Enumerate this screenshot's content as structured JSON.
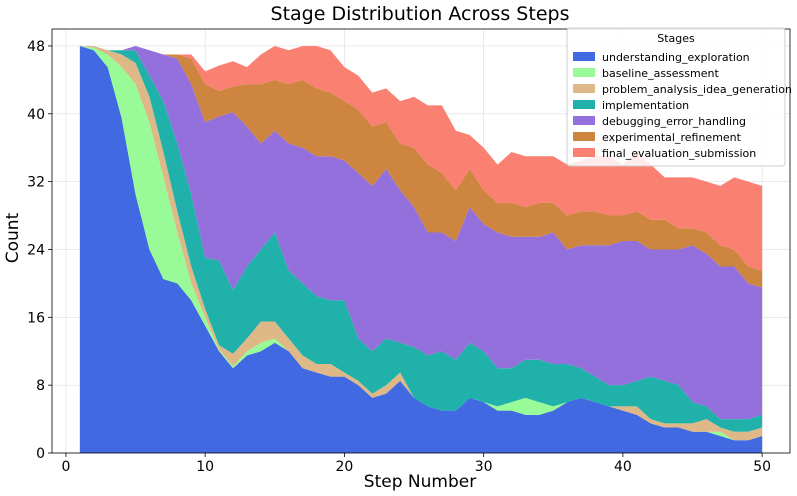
{
  "chart_data": {
    "type": "area",
    "stacked": true,
    "title": "Stage Distribution Across Steps",
    "xlabel": "Step Number",
    "ylabel": "Count",
    "xlim": [
      -1,
      52
    ],
    "ylim": [
      0,
      50
    ],
    "xticks": [
      0,
      10,
      20,
      30,
      40,
      50
    ],
    "yticks": [
      0,
      8,
      16,
      24,
      32,
      40,
      48
    ],
    "grid": true,
    "legend_title": "Stages",
    "legend_position": "top-right",
    "x": [
      1,
      2,
      3,
      4,
      5,
      6,
      7,
      8,
      9,
      10,
      11,
      12,
      13,
      14,
      15,
      16,
      17,
      18,
      19,
      20,
      21,
      22,
      23,
      24,
      25,
      26,
      27,
      28,
      29,
      30,
      31,
      32,
      33,
      34,
      35,
      36,
      37,
      38,
      39,
      40,
      41,
      42,
      43,
      44,
      45,
      46,
      47,
      48,
      49,
      50
    ],
    "series": [
      {
        "name": "understanding_exploration",
        "color": "#4169e1",
        "values": [
          48,
          47.5,
          45.5,
          39.5,
          30.5,
          24,
          20.5,
          20,
          18,
          15,
          12,
          10,
          11.5,
          12,
          13,
          12,
          10,
          9.5,
          9,
          9,
          8,
          6.5,
          7,
          8.5,
          6.5,
          5.5,
          5,
          5,
          6.5,
          6,
          5,
          5,
          4.5,
          4.5,
          5,
          6,
          6.5,
          6,
          5.5,
          5,
          4.5,
          3.5,
          3,
          3,
          2.5,
          2.5,
          2,
          1.5,
          1.5,
          2
        ]
      },
      {
        "name": "baseline_assessment",
        "color": "#98fb98",
        "values": [
          0,
          0.3,
          1.5,
          6,
          13,
          15,
          12,
          6,
          2,
          1,
          0.2,
          0.2,
          0.5,
          1,
          0.5,
          0,
          0,
          0,
          0,
          0,
          0,
          0,
          0,
          0,
          0,
          0,
          0,
          0,
          0,
          0,
          0.5,
          1,
          2,
          1.5,
          0.5,
          0,
          0,
          0,
          0,
          0,
          0,
          0,
          0,
          0,
          0,
          0,
          0.5,
          0,
          0,
          0
        ]
      },
      {
        "name": "problem_analysis_idea_generation",
        "color": "#deb887",
        "values": [
          0,
          0.2,
          0.5,
          1.5,
          2.5,
          3,
          3,
          2.5,
          2,
          1,
          0.5,
          1.5,
          1.5,
          2.5,
          2,
          1.5,
          1.5,
          1,
          1.5,
          0.5,
          0.5,
          0.5,
          1,
          1,
          0,
          0,
          0,
          0,
          0,
          0,
          0,
          0,
          0,
          0,
          0,
          0,
          0,
          0,
          0,
          0.5,
          1,
          0.5,
          0.5,
          0.5,
          1,
          1.5,
          0.5,
          1,
          1,
          1
        ]
      },
      {
        "name": "implementation",
        "color": "#20b2aa",
        "values": [
          0,
          0,
          0,
          0.5,
          1.5,
          2.5,
          6,
          8,
          8.5,
          6,
          10,
          7.5,
          8.5,
          8.5,
          10.5,
          8,
          8.5,
          8,
          7.5,
          8.5,
          5,
          5,
          5.5,
          3.5,
          6,
          6,
          7,
          6,
          6.5,
          6,
          4.5,
          4,
          4.5,
          5,
          5,
          4.5,
          3.5,
          3,
          2.5,
          2.5,
          3,
          5,
          5,
          4.5,
          2.5,
          1.5,
          1,
          1.5,
          1.5,
          1.5
        ]
      },
      {
        "name": "debugging_error_handling",
        "color": "#9370db",
        "values": [
          0,
          0,
          0,
          0,
          0.5,
          3,
          5.5,
          10,
          13,
          16,
          17,
          21,
          16.5,
          12.5,
          12,
          15,
          16,
          16.5,
          17,
          16.5,
          19.5,
          19.5,
          20,
          18,
          16.5,
          14.5,
          14,
          14,
          16,
          15,
          16,
          15.5,
          14.5,
          14.5,
          15.5,
          13.5,
          14.5,
          15.5,
          16.5,
          17,
          16.5,
          15,
          15.5,
          16,
          18.5,
          18,
          18,
          18,
          16,
          15
        ]
      },
      {
        "name": "experimental_refinement",
        "color": "#cd853f",
        "values": [
          0,
          0,
          0,
          0,
          0,
          0,
          0,
          0.5,
          3,
          4.5,
          3,
          3,
          5,
          7,
          6,
          7,
          8,
          8,
          7.5,
          7,
          7.5,
          7,
          5.5,
          5.5,
          7,
          8,
          7,
          6,
          4.5,
          4,
          3.5,
          4,
          3.5,
          4,
          3.5,
          4,
          4,
          4,
          3.5,
          3,
          3.5,
          3.5,
          3.5,
          2.5,
          2,
          2.5,
          2.5,
          2,
          2,
          2
        ]
      },
      {
        "name": "final_evaluation_submission",
        "color": "#fa8072",
        "values": [
          0,
          0,
          0,
          0,
          0,
          0,
          0,
          0,
          0.5,
          1.5,
          3,
          3,
          2,
          3.5,
          4,
          4,
          4,
          5,
          5,
          4,
          4,
          4,
          4,
          5,
          6,
          7,
          8,
          7,
          4,
          5,
          4.5,
          6,
          6,
          5.5,
          5.5,
          6,
          6,
          6.5,
          7,
          6,
          7,
          6.5,
          5,
          6,
          6,
          6,
          7,
          8.5,
          10,
          10
        ]
      }
    ]
  }
}
